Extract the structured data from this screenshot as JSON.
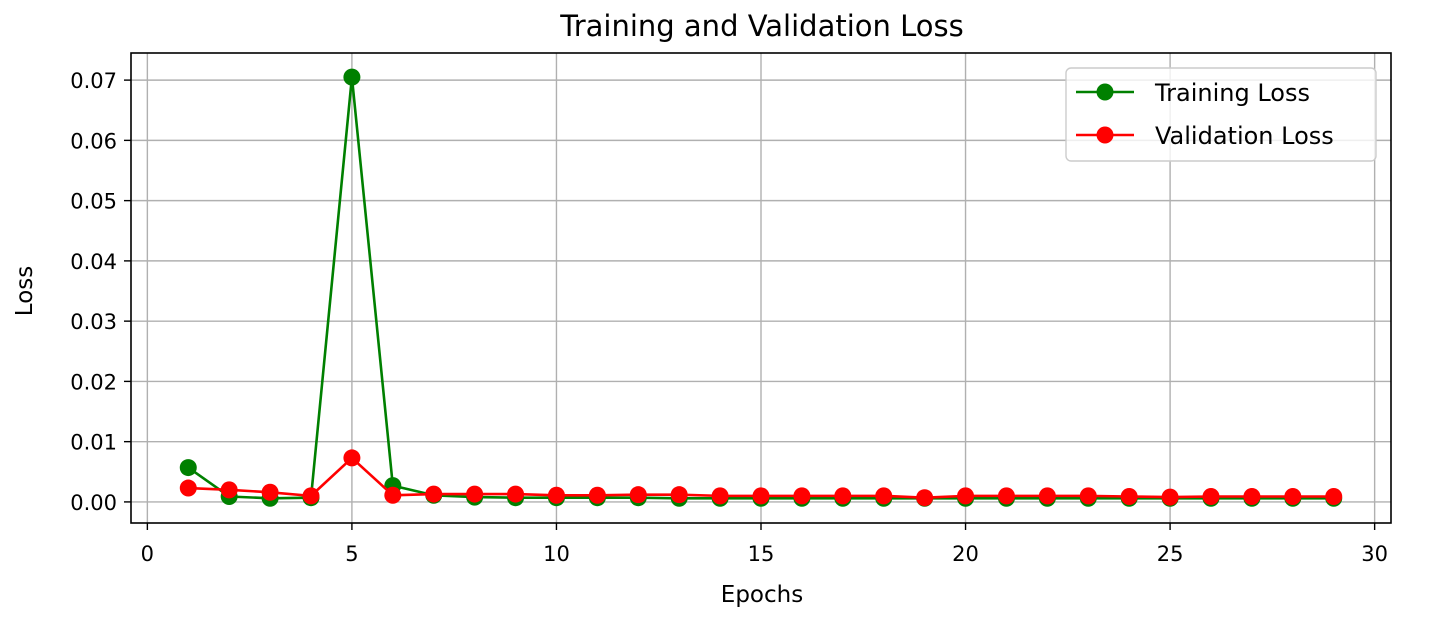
{
  "chart_data": {
    "type": "line",
    "title": "Training and Validation Loss",
    "xlabel": "Epochs",
    "ylabel": "Loss",
    "xlim": [
      -0.4,
      30.4
    ],
    "ylim": [
      -0.0035,
      0.0745
    ],
    "xticks": [
      0,
      5,
      10,
      15,
      20,
      25,
      30
    ],
    "xtick_labels": [
      "0",
      "5",
      "10",
      "15",
      "20",
      "25",
      "30"
    ],
    "yticks": [
      0.0,
      0.01,
      0.02,
      0.03,
      0.04,
      0.05,
      0.06,
      0.07
    ],
    "ytick_labels": [
      "0.00",
      "0.01",
      "0.02",
      "0.03",
      "0.04",
      "0.05",
      "0.06",
      "0.07"
    ],
    "grid": true,
    "legend_position": "top-right",
    "x": [
      1,
      2,
      3,
      4,
      5,
      6,
      7,
      8,
      9,
      10,
      11,
      12,
      13,
      14,
      15,
      16,
      17,
      18,
      19,
      20,
      21,
      22,
      23,
      24,
      25,
      26,
      27,
      28,
      29
    ],
    "series": [
      {
        "name": "Training Loss",
        "color": "#008000",
        "marker": "circle",
        "values": [
          0.0057,
          0.0009,
          0.0006,
          0.0007,
          0.0705,
          0.0027,
          0.0011,
          0.0008,
          0.0007,
          0.0007,
          0.0007,
          0.0007,
          0.0006,
          0.0006,
          0.0006,
          0.0006,
          0.0006,
          0.0006,
          0.0006,
          0.0006,
          0.0006,
          0.0006,
          0.0006,
          0.0006,
          0.0006,
          0.0006,
          0.0006,
          0.0006,
          0.0006
        ]
      },
      {
        "name": "Validation Loss",
        "color": "#ff0000",
        "marker": "circle",
        "values": [
          0.0023,
          0.002,
          0.0016,
          0.001,
          0.0073,
          0.0011,
          0.0013,
          0.0013,
          0.0013,
          0.0011,
          0.0011,
          0.0012,
          0.0012,
          0.001,
          0.001,
          0.001,
          0.001,
          0.001,
          0.0007,
          0.001,
          0.001,
          0.001,
          0.001,
          0.0009,
          0.0008,
          0.0009,
          0.0009,
          0.0009,
          0.0009
        ]
      }
    ]
  }
}
